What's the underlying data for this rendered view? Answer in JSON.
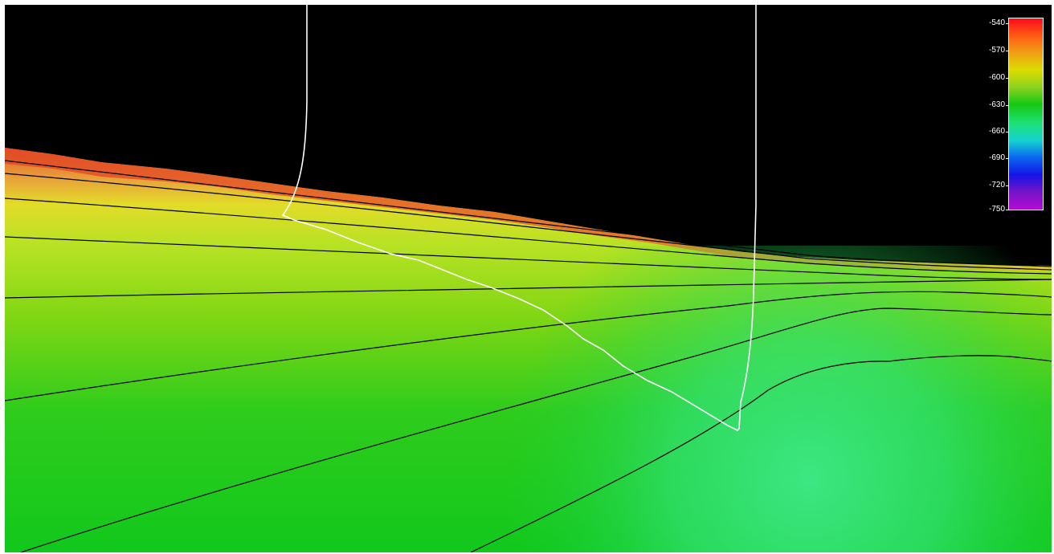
{
  "legend": {
    "ticks": [
      "-540",
      "-570",
      "-600",
      "-630",
      "-660",
      "-690",
      "-720",
      "-750"
    ],
    "colors": [
      "#ff0a1e",
      "#ff5a14",
      "#f0a014",
      "#dcdc00",
      "#8cd21e",
      "#14c814",
      "#1ee178",
      "#14d2d2",
      "#0a64f0",
      "#1414e6",
      "#7814c8",
      "#b40ad2"
    ]
  }
}
